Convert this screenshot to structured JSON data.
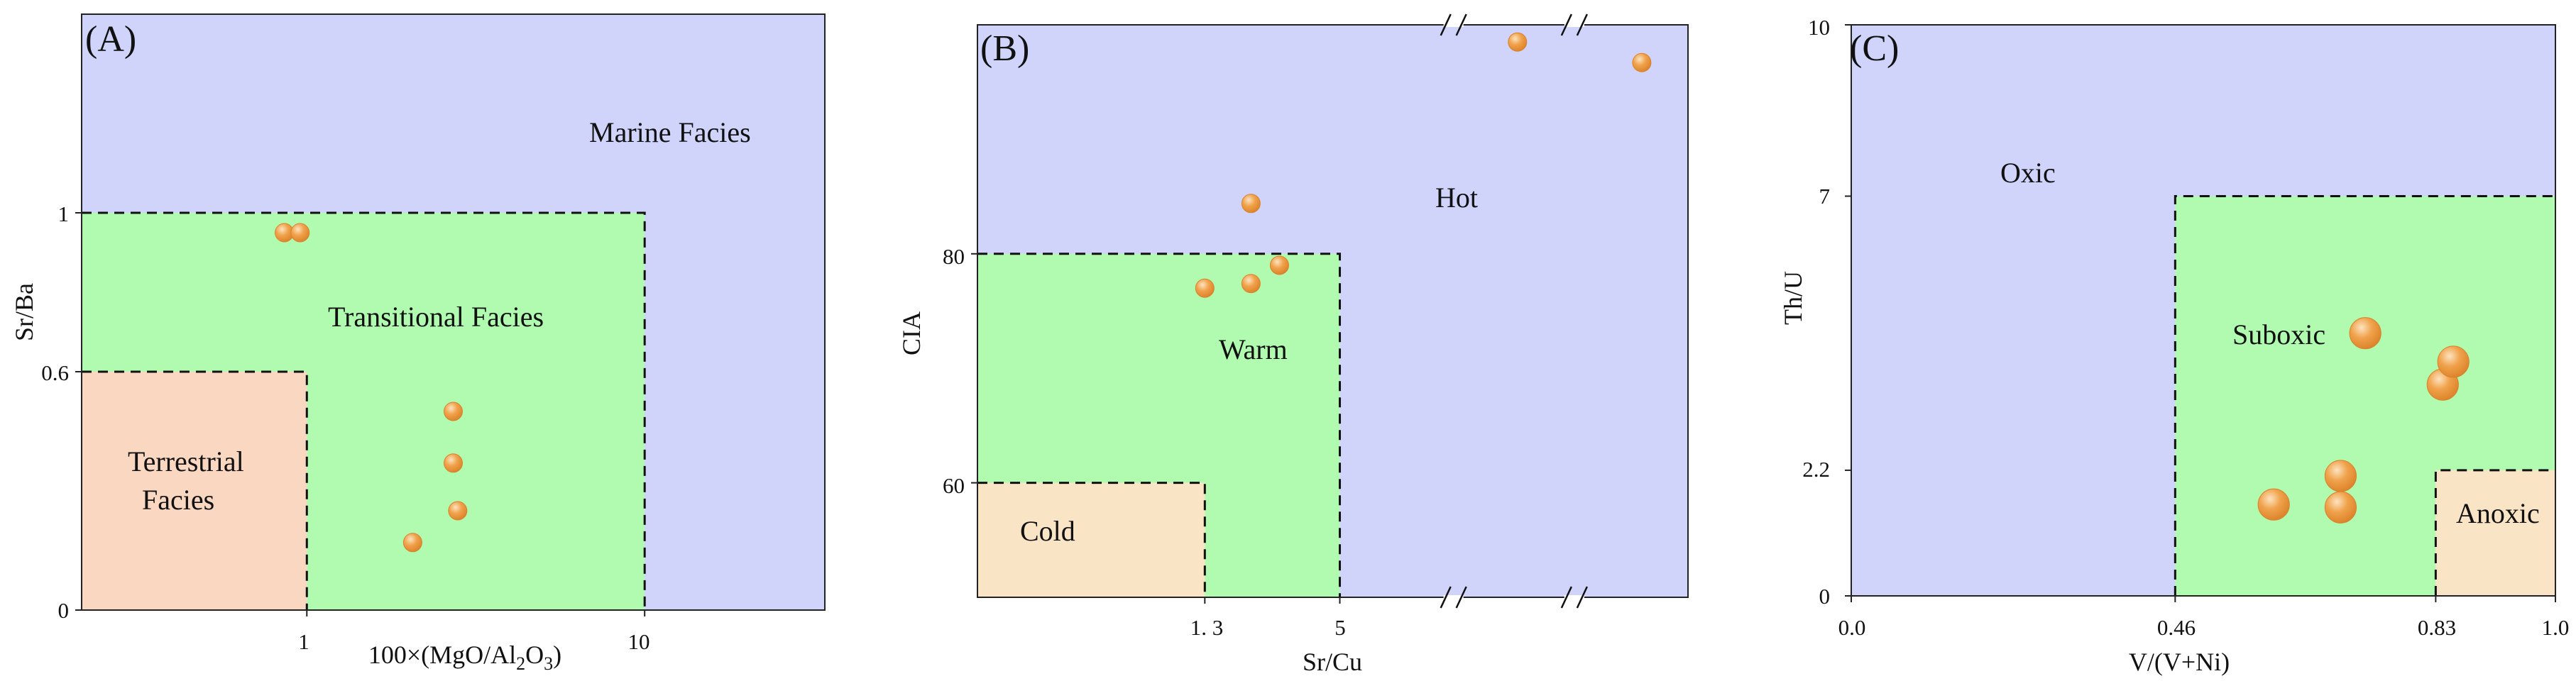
{
  "colors": {
    "oxic_or_marine": "#d0d4fb",
    "transitional_green": "#b1fbb0",
    "terrestrial": "#f9d7c1",
    "cold_anoxic": "#f9e4c5",
    "point": "#f0a24b",
    "point_highlight": "#fde3c0",
    "frame": "#222222"
  },
  "chart_data": [
    {
      "panel": "(A)",
      "type": "scatter",
      "xlabel": "100×(MgO/Al2O3)",
      "xlabel_parts": {
        "pre": "100×(MgO/Al",
        "sub1": "2",
        "mid": "O",
        "sub2": "3",
        "post": ")"
      },
      "ylabel": "Sr/Ba",
      "xticks": [
        "1",
        "10"
      ],
      "yticks": [
        "0",
        "0.6",
        "1"
      ],
      "x_domain": [
        0,
        3.3
      ],
      "y_domain": [
        0,
        1.5
      ],
      "x_tick_values": [
        1,
        2.5
      ],
      "y_tick_values": [
        0,
        0.6,
        1
      ],
      "regions": [
        {
          "name": "Marine Facies",
          "x": [
            0,
            3.3
          ],
          "y": [
            0,
            1.5
          ],
          "color": "oxic_or_marine"
        },
        {
          "name": "Transitional Facies",
          "x": [
            0,
            2.5
          ],
          "y": [
            0,
            1.0
          ],
          "color": "transitional_green",
          "dashed": true
        },
        {
          "name": "Terrestrial Facies",
          "x": [
            0,
            1.0
          ],
          "y": [
            0,
            0.6
          ],
          "color": "terrestrial",
          "dashed": true
        }
      ],
      "labels": [
        "Marine Facies",
        "Transitional Facies",
        "Terrestrial",
        "Facies"
      ],
      "points": [
        {
          "x": 0.9,
          "y": 0.95
        },
        {
          "x": 0.97,
          "y": 0.95
        },
        {
          "x": 1.65,
          "y": 0.5
        },
        {
          "x": 1.65,
          "y": 0.37
        },
        {
          "x": 1.67,
          "y": 0.25
        },
        {
          "x": 1.47,
          "y": 0.17
        }
      ],
      "point_radius": 1
    },
    {
      "panel": "(B)",
      "type": "scatter",
      "xlabel": "Sr/Cu",
      "ylabel": "CIA",
      "xticks": [
        "1. 3",
        "5"
      ],
      "yticks": [
        "60",
        "80"
      ],
      "x_domain": [
        0,
        10
      ],
      "y_domain": [
        50,
        100
      ],
      "x_tick_values": [
        3.2,
        5.1
      ],
      "y_tick_values": [
        60,
        80
      ],
      "regions": [
        {
          "name": "Hot",
          "x": [
            0,
            10
          ],
          "y": [
            50,
            100
          ],
          "color": "oxic_or_marine"
        },
        {
          "name": "Warm",
          "x": [
            0,
            5.1
          ],
          "y": [
            50,
            80
          ],
          "color": "transitional_green",
          "dashed": true
        },
        {
          "name": "Cold",
          "x": [
            0,
            3.2
          ],
          "y": [
            50,
            60
          ],
          "color": "cold_anoxic",
          "dashed": true
        }
      ],
      "labels": [
        "Hot",
        "Warm",
        "Cold"
      ],
      "axis_breaks": [
        6.7,
        8.4
      ],
      "points": [
        {
          "x": 3.2,
          "y": 77
        },
        {
          "x": 3.85,
          "y": 84.4
        },
        {
          "x": 3.85,
          "y": 77.4
        },
        {
          "x": 4.25,
          "y": 79
        },
        {
          "x": 7.6,
          "y": 98.5
        },
        {
          "x": 9.35,
          "y": 96.7
        }
      ],
      "point_radius": 1
    },
    {
      "panel": "(C)",
      "type": "scatter",
      "xlabel": "V/(V+Ni)",
      "ylabel": "Th/U",
      "xticks": [
        "0.0",
        "0.46",
        "0.83",
        "1.0"
      ],
      "yticks": [
        "0",
        "2.2",
        "7",
        "10"
      ],
      "x_domain": [
        0,
        1.0
      ],
      "y_domain": [
        0,
        10
      ],
      "x_tick_values": [
        0,
        0.46,
        0.83,
        1.0
      ],
      "y_tick_values": [
        0,
        2.2,
        7,
        10
      ],
      "regions": [
        {
          "name": "Oxic",
          "x": [
            0,
            1.0
          ],
          "y": [
            0,
            10
          ],
          "color": "oxic_or_marine"
        },
        {
          "name": "Suboxic",
          "x": [
            0.46,
            1.0
          ],
          "y": [
            0,
            7
          ],
          "color": "transitional_green",
          "dashed": true
        },
        {
          "name": "Anoxic",
          "x": [
            0.83,
            1.0
          ],
          "y": [
            0,
            2.2
          ],
          "color": "cold_anoxic",
          "dashed": true
        }
      ],
      "labels": [
        "Oxic",
        "Suboxic",
        "Anoxic"
      ],
      "points": [
        {
          "x": 0.6,
          "y": 1.6
        },
        {
          "x": 0.695,
          "y": 2.1
        },
        {
          "x": 0.695,
          "y": 1.55
        },
        {
          "x": 0.73,
          "y": 4.6
        },
        {
          "x": 0.84,
          "y": 3.7
        },
        {
          "x": 0.855,
          "y": 4.1
        }
      ],
      "point_radius": 1.3
    }
  ]
}
